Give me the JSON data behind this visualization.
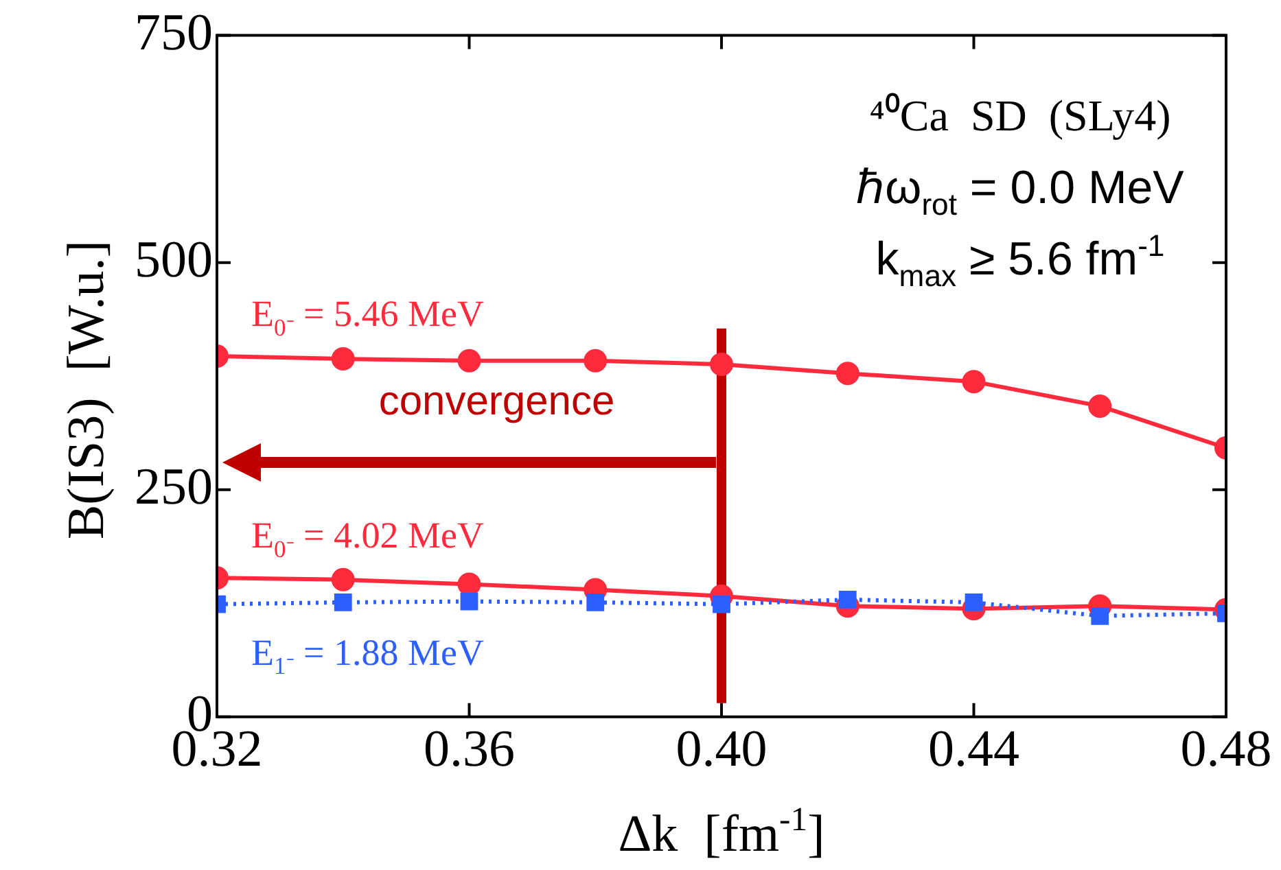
{
  "chart_data": {
    "type": "line",
    "xlabel": "Δk  [fm$^{-1}$]",
    "ylabel": "B(IS3)  [W.u.]",
    "x": [
      0.32,
      0.34,
      0.36,
      0.38,
      0.4,
      0.42,
      0.44,
      0.46,
      0.48
    ],
    "xlim": [
      0.32,
      0.48
    ],
    "xticks": [
      0.32,
      0.36,
      {
        "value": 0.4,
        "label": "0.40"
      },
      0.44,
      0.48
    ],
    "ylim": [
      0,
      750
    ],
    "yticks": [
      0,
      250,
      500,
      750
    ],
    "grid": false,
    "legend": false,
    "series": [
      {
        "name": "E$_{0⁻}$ = 5.46 MeV",
        "color": "#ff2a3c",
        "marker": "circle",
        "line_style": "solid",
        "values": [
          397,
          394,
          392,
          392,
          388,
          378,
          369,
          342,
          296
        ]
      },
      {
        "name": "E$_{0⁻}$ = 4.02 MeV",
        "color": "#ff2a3c",
        "marker": "circle",
        "line_style": "solid",
        "values": [
          153,
          151,
          146,
          140,
          133,
          122,
          119,
          122,
          118
        ]
      },
      {
        "name": "E$_{1⁻}$ = 1.88 MeV",
        "color": "#2b5fff",
        "marker": "square",
        "line_style": "dotted",
        "values": [
          124,
          126,
          127,
          126,
          124,
          129,
          126,
          111,
          114
        ]
      }
    ],
    "ref_lines": [
      {
        "axis": "x",
        "value": 0.4,
        "color": "#c00000",
        "line_style": "solid"
      }
    ],
    "annotations": [
      "⁴⁰Ca  SD  (SLy4)",
      "ℏω$_{rot}$ = 0.0 MeV",
      "k$_{max}$ ≥ 5.6 fm$^{-1}$",
      "convergence"
    ]
  }
}
